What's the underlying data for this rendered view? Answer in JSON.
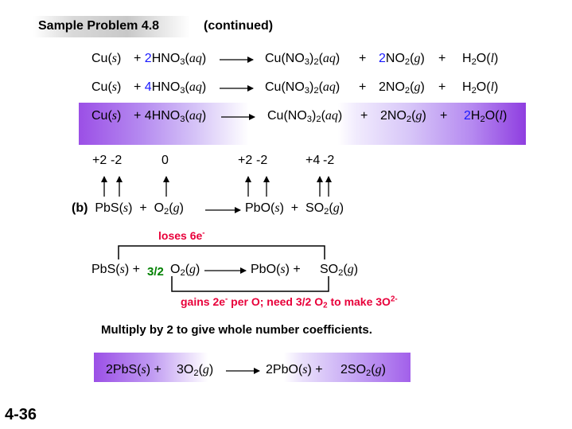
{
  "header": {
    "title": "Sample Problem 4.8",
    "continued": "(continued)"
  },
  "equations": {
    "row1": {
      "reactant1": "Cu",
      "state1": "s",
      "plus": "+",
      "coef2": "2",
      "reactant2": "HNO",
      "sub_3": "3",
      "state2": "aq",
      "product1": "Cu(NO",
      "p1_sub3": "3",
      "p1_close": ")",
      "p1_sub2": "2",
      "p1_state": "aq",
      "coef_p2": "2",
      "product2": "NO",
      "p2_sub": "2",
      "p2_state": "g",
      "product3_a": "H",
      "p3_sub": "2",
      "product3_b": "O",
      "p3_state": "l"
    },
    "row2": {
      "reactant1": "Cu",
      "state1": "s",
      "plus": "+",
      "coef2": "4",
      "reactant2": "HNO",
      "sub_3": "3",
      "state2": "aq",
      "product1": "Cu(NO",
      "p1_sub3": "3",
      "p1_close": ")",
      "p1_sub2": "2",
      "p1_state": "aq",
      "product2": "2NO",
      "p2_sub": "2",
      "p2_state": "g",
      "product3_a": "H",
      "p3_sub": "2",
      "product3_b": "O",
      "p3_state": "l"
    },
    "row3": {
      "reactant1": "Cu",
      "state1": "s",
      "plus": "+",
      "reactant2": "4HNO",
      "sub_3": "3",
      "state2": "aq",
      "product1": "Cu(NO",
      "p1_sub3": "3",
      "p1_close": ")",
      "p1_sub2": "2",
      "p1_state": "aq",
      "product2": "2NO",
      "p2_sub": "2",
      "p2_state": "g",
      "coef_p3": "2",
      "product3_a": "H",
      "p3_sub": "2",
      "product3_b": "O",
      "p3_state": "l"
    }
  },
  "oxidation_numbers": {
    "pb_in_pbs": "+2",
    "s_in_pbs": "-2",
    "o2": "0",
    "pb_in_pbo": "+2",
    "o_in_pbo": "-2",
    "s_in_so2": "+4",
    "o_in_so2": "-2"
  },
  "part_b": {
    "label": "(b)",
    "pbs": "PbS",
    "pbs_state": "s",
    "o2": "O",
    "o2_sub": "2",
    "o2_state": "g",
    "pbo": "PbO",
    "pbo_state": "s",
    "so2": "SO",
    "so2_sub": "2",
    "so2_state": "g"
  },
  "loses": {
    "text": "loses 6e",
    "sup": "-"
  },
  "balanced_b": {
    "pbs": "PbS",
    "pbs_state": "s",
    "coef_o2": "3/2",
    "o2": "O",
    "o2_sub": "2",
    "o2_state": "g",
    "pbo": "PbO",
    "pbo_state": "s",
    "so2": "SO",
    "so2_sub": "2",
    "so2_state": "g"
  },
  "gains": {
    "text_a": "gains 2e",
    "sup_a": "-",
    "text_b": " per O; need 3/2 O",
    "sub_b": "2",
    "text_c": " to make 3O",
    "sup_c": "2-"
  },
  "instruction": "Multiply by 2 to give whole number coefficients.",
  "final": {
    "pbs": "2PbS",
    "pbs_state": "s",
    "o2": "3O",
    "o2_sub": "2",
    "o2_state": "g",
    "pbo": "2PbO",
    "pbo_state": "s",
    "so2": "2SO",
    "so2_sub": "2",
    "so2_state": "g"
  },
  "slide_number": "4-36",
  "colors": {
    "blue": "#1a1aff",
    "green": "#008000",
    "red": "#e8003a",
    "band_purple": "#9b4fe6"
  }
}
